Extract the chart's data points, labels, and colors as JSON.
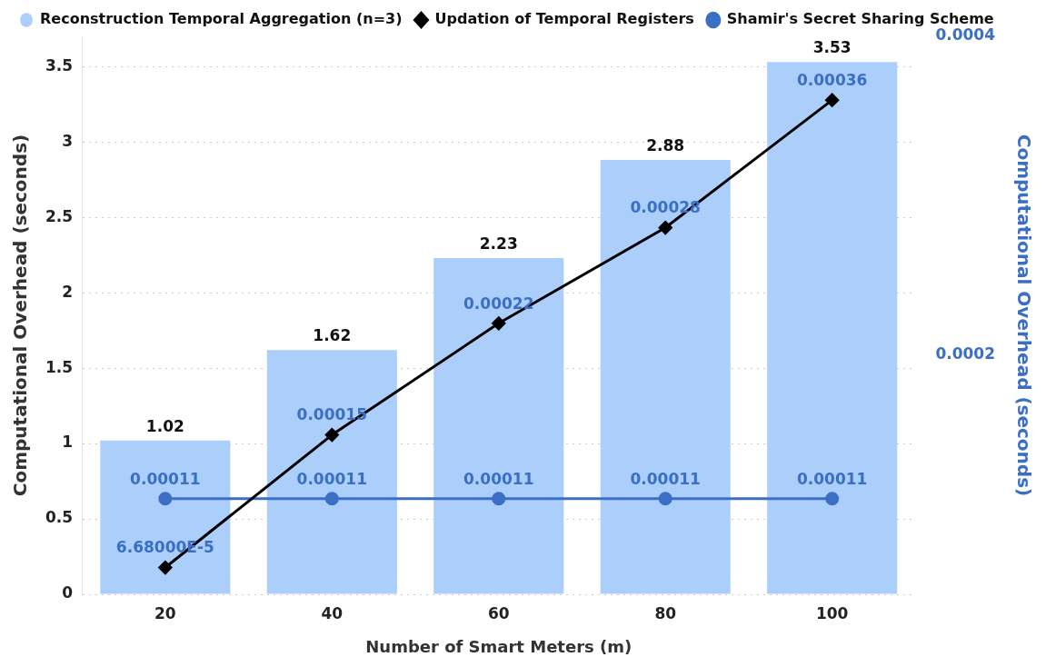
{
  "chart_data": {
    "type": "bar",
    "xlabel": "Number of Smart Meters (m)",
    "ylabel": "Computational Overhead (seconds)",
    "y2label": "Computational Overhead (seconds)",
    "categories": [
      "20",
      "40",
      "60",
      "80",
      "100"
    ],
    "series": [
      {
        "name": "Reconstruction Temporal Aggregation (n=3)",
        "color": "#abcffa",
        "values": [
          1.02,
          1.62,
          2.23,
          2.88,
          3.53
        ],
        "value_labels": [
          "1.02",
          "1.62",
          "2.23",
          "2.88",
          "3.53"
        ],
        "marker": "circle"
      },
      {
        "name": "Updation of Temporal Registers",
        "type": "line",
        "axis": "y2",
        "color": "#000000",
        "values": [
          6.68e-05,
          0.00015,
          0.00022,
          0.00028,
          0.00036
        ],
        "value_labels": [
          "6.68000E-5",
          "0.00015",
          "0.00022",
          "0.00028",
          "0.00036"
        ],
        "marker": "diamond"
      },
      {
        "name": "Shamir's Secret Sharing Scheme",
        "type": "line",
        "axis": "y2",
        "color": "#3a6fc4",
        "values": [
          0.00011,
          0.00011,
          0.00011,
          0.00011,
          0.00011
        ],
        "value_labels": [
          "0.00011",
          "0.00011",
          "0.00011",
          "0.00011",
          "0.00011"
        ],
        "marker": "circle"
      }
    ],
    "ylim": [
      0,
      3.7
    ],
    "yticks": [
      0,
      0.5,
      1,
      1.5,
      2,
      2.5,
      3,
      3.5
    ],
    "y2lim": [
      5e-05,
      0.0004
    ],
    "y2ticks": [
      0.0002,
      0.0004
    ],
    "grid": "y",
    "legend": "top"
  }
}
